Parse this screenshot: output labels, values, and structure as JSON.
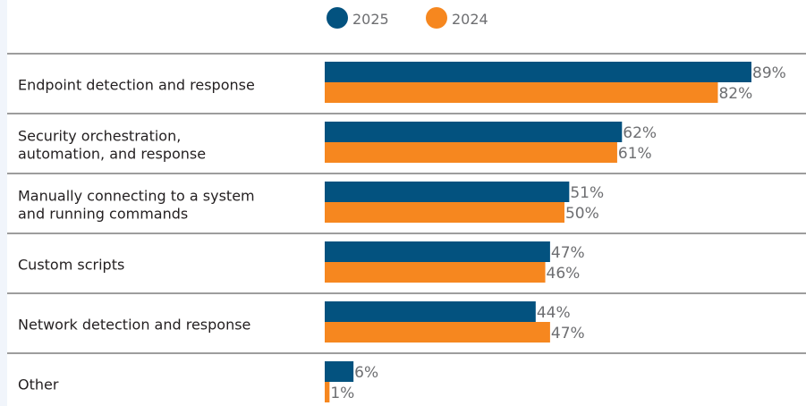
{
  "chart_data": {
    "type": "bar",
    "orientation": "horizontal",
    "title": "",
    "xlabel": "",
    "ylabel": "",
    "xlim": [
      0,
      100
    ],
    "value_suffix": "%",
    "grid": false,
    "legend_position": "top",
    "categories": [
      "Endpoint detection and response",
      "Security orchestration,\nautomation, and response",
      "Manually connecting to a system\nand running commands",
      "Custom scripts",
      "Network detection and response",
      "Other"
    ],
    "series": [
      {
        "name": "2025",
        "color": "#03527f",
        "values": [
          89,
          62,
          51,
          47,
          44,
          6
        ]
      },
      {
        "name": "2024",
        "color": "#f6871f",
        "values": [
          82,
          61,
          50,
          46,
          47,
          1
        ]
      }
    ],
    "label_color": "#6d6e71",
    "category_color": "#231f20",
    "separator_color": "#3b3b3b"
  }
}
